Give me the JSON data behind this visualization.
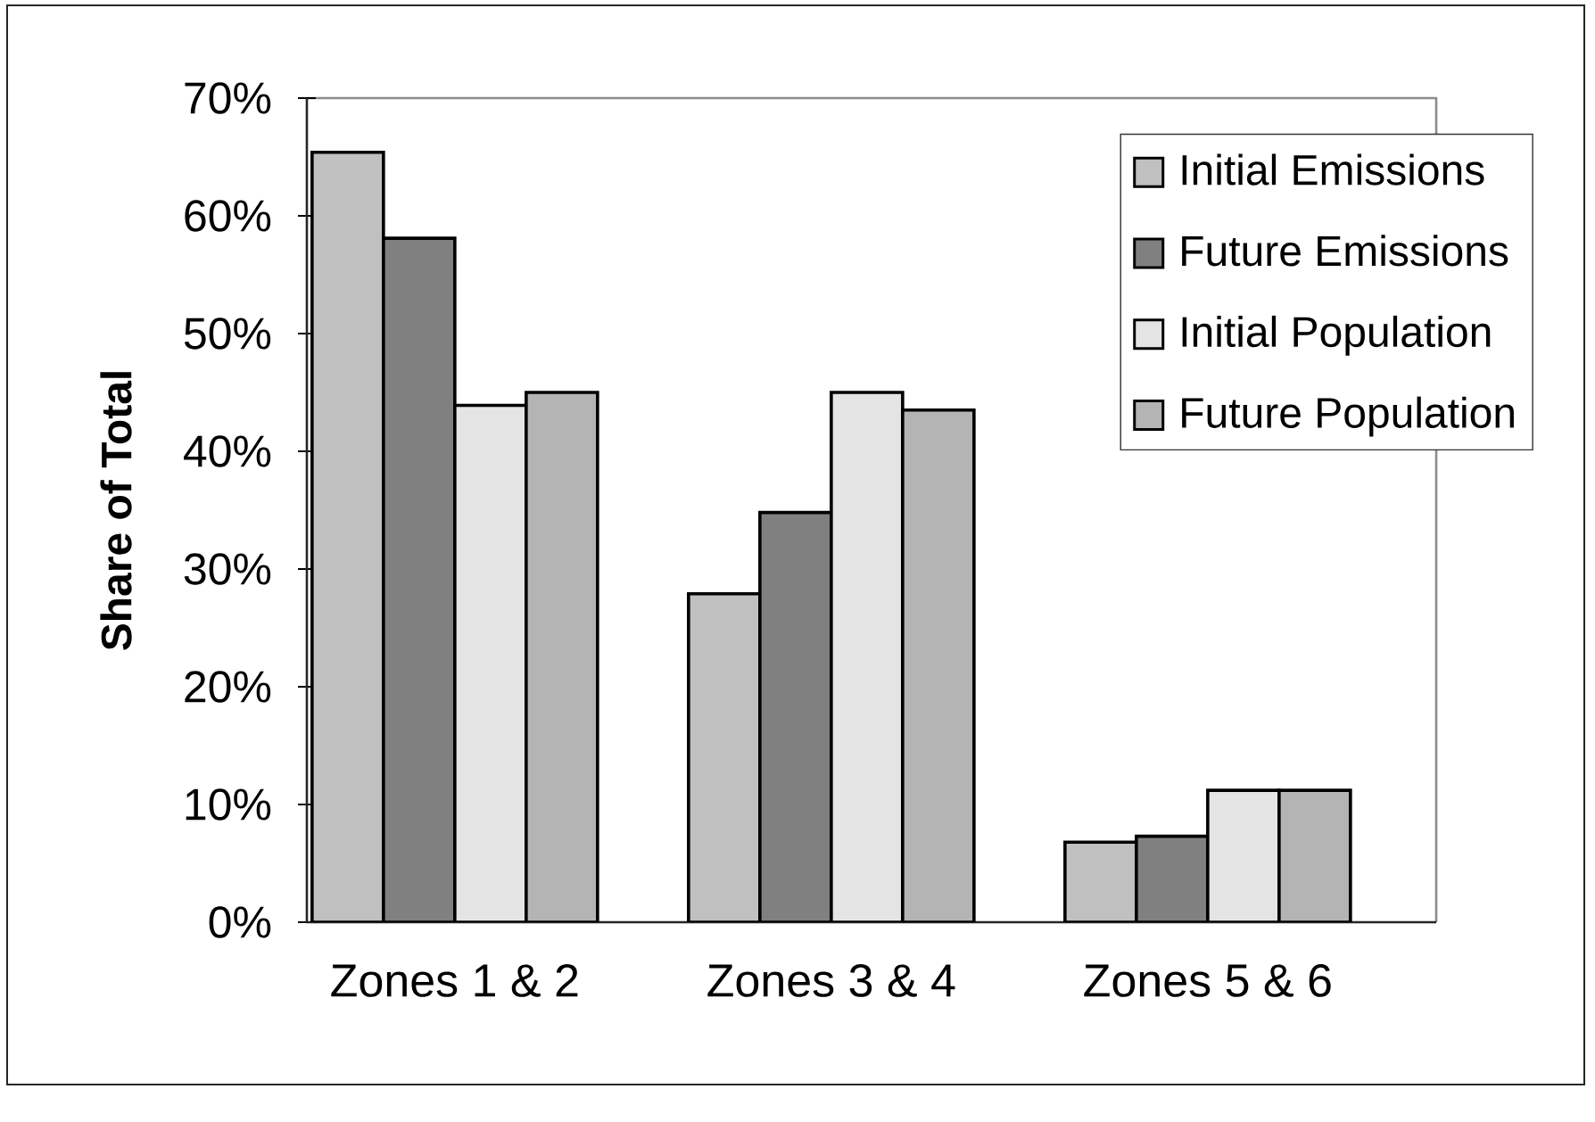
{
  "chart_data": {
    "type": "bar",
    "categories": [
      "Zones 1 & 2",
      "Zones 3 & 4",
      "Zones 5 & 6"
    ],
    "ylabel": "Share of Total",
    "ylim": [
      0,
      70
    ],
    "yticks": [
      {
        "value": 0,
        "label": "0%"
      },
      {
        "value": 10,
        "label": "10%"
      },
      {
        "value": 20,
        "label": "20%"
      },
      {
        "value": 30,
        "label": "30%"
      },
      {
        "value": 40,
        "label": "40%"
      },
      {
        "value": 50,
        "label": "50%"
      },
      {
        "value": 60,
        "label": "60%"
      },
      {
        "value": 70,
        "label": "70%"
      }
    ],
    "series": [
      {
        "name": "Initial Emissions",
        "color": "#c0c0c0",
        "values": [
          65.4,
          27.9,
          6.8
        ]
      },
      {
        "name": "Future Emissions",
        "color": "#808080",
        "values": [
          58.1,
          34.8,
          7.3
        ]
      },
      {
        "name": "Initial Population",
        "color": "#e4e4e4",
        "values": [
          43.9,
          45.0,
          11.2
        ]
      },
      {
        "name": "Future Population",
        "color": "#b4b4b4",
        "values": [
          45.0,
          43.5,
          11.2
        ]
      }
    ],
    "legend": "top right"
  }
}
